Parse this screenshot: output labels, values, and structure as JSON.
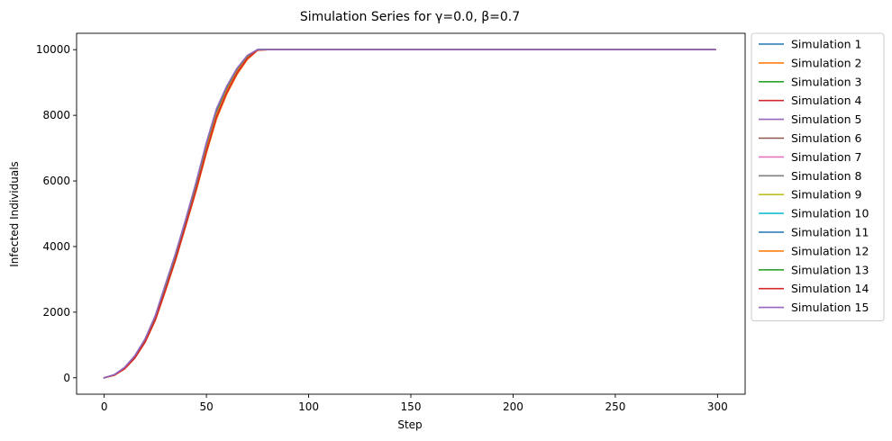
{
  "chart_data": {
    "type": "line",
    "title": "Simulation Series for γ=0.0, β=0.7",
    "xlabel": "Step",
    "ylabel": "Infected Individuals",
    "xlim": [
      -13.5,
      313.5
    ],
    "ylim": [
      -500,
      10500
    ],
    "xticks": [
      0,
      50,
      100,
      150,
      200,
      250,
      300
    ],
    "yticks": [
      0,
      2000,
      4000,
      6000,
      8000,
      10000
    ],
    "grid": false,
    "legend": "outside-upper-right",
    "x": [
      0,
      5,
      10,
      15,
      20,
      25,
      30,
      35,
      40,
      45,
      50,
      55,
      60,
      65,
      70,
      75,
      80,
      100,
      150,
      200,
      250,
      299
    ],
    "series": [
      {
        "name": "Simulation 1",
        "color": "#1f77b4",
        "values": [
          0,
          90,
          300,
          650,
          1150,
          1850,
          2800,
          3750,
          4800,
          5900,
          7100,
          8150,
          8850,
          9400,
          9800,
          10000,
          10000,
          10000,
          10000,
          10000,
          10000,
          10000
        ]
      },
      {
        "name": "Simulation 2",
        "color": "#ff7f0e",
        "values": [
          0,
          80,
          270,
          600,
          1080,
          1750,
          2650,
          3600,
          4650,
          5700,
          6850,
          7900,
          8650,
          9250,
          9700,
          9980,
          10000,
          10000,
          10000,
          10000,
          10000,
          10000
        ]
      },
      {
        "name": "Simulation 3",
        "color": "#2ca02c",
        "values": [
          0,
          88,
          295,
          640,
          1140,
          1840,
          2780,
          3730,
          4780,
          5880,
          7070,
          8120,
          8830,
          9390,
          9790,
          10000,
          10000,
          10000,
          10000,
          10000,
          10000,
          10000
        ]
      },
      {
        "name": "Simulation 4",
        "color": "#d62728",
        "values": [
          0,
          82,
          280,
          615,
          1100,
          1780,
          2700,
          3650,
          4700,
          5780,
          6950,
          8000,
          8730,
          9320,
          9750,
          9995,
          10000,
          10000,
          10000,
          10000,
          10000,
          10000
        ]
      },
      {
        "name": "Simulation 5",
        "color": "#9467bd",
        "values": [
          0,
          95,
          315,
          670,
          1180,
          1890,
          2850,
          3800,
          4850,
          5960,
          7160,
          8200,
          8890,
          9430,
          9820,
          10000,
          10000,
          10000,
          10000,
          10000,
          10000,
          10000
        ]
      },
      {
        "name": "Simulation 6",
        "color": "#8c564b",
        "values": [
          0,
          90,
          300,
          650,
          1150,
          1850,
          2800,
          3750,
          4800,
          5900,
          7100,
          8150,
          8850,
          9400,
          9800,
          10000,
          10000,
          10000,
          10000,
          10000,
          10000,
          10000
        ]
      },
      {
        "name": "Simulation 7",
        "color": "#e377c2",
        "values": [
          0,
          92,
          305,
          655,
          1160,
          1860,
          2810,
          3760,
          4810,
          5910,
          7110,
          8160,
          8860,
          9410,
          9805,
          10000,
          10000,
          10000,
          10000,
          10000,
          10000,
          10000
        ]
      },
      {
        "name": "Simulation 8",
        "color": "#7f7f7f",
        "values": [
          0,
          89,
          298,
          648,
          1148,
          1848,
          2798,
          3748,
          4798,
          5898,
          7098,
          8148,
          8848,
          9398,
          9798,
          10000,
          10000,
          10000,
          10000,
          10000,
          10000,
          10000
        ]
      },
      {
        "name": "Simulation 9",
        "color": "#bcbd22",
        "values": [
          0,
          84,
          285,
          625,
          1115,
          1800,
          2730,
          3680,
          4730,
          5820,
          7000,
          8060,
          8780,
          9350,
          9770,
          9998,
          10000,
          10000,
          10000,
          10000,
          10000,
          10000
        ]
      },
      {
        "name": "Simulation 10",
        "color": "#17becf",
        "values": [
          0,
          91,
          302,
          652,
          1152,
          1852,
          2802,
          3752,
          4802,
          5902,
          7102,
          8152,
          8852,
          9402,
          9802,
          10000,
          10000,
          10000,
          10000,
          10000,
          10000,
          10000
        ]
      },
      {
        "name": "Simulation 11",
        "color": "#1f77b4",
        "values": [
          0,
          87,
          292,
          636,
          1134,
          1832,
          2770,
          3720,
          4770,
          5865,
          7055,
          8110,
          8820,
          9380,
          9785,
          10000,
          10000,
          10000,
          10000,
          10000,
          10000,
          10000
        ]
      },
      {
        "name": "Simulation 12",
        "color": "#ff7f0e",
        "values": [
          0,
          83,
          282,
          620,
          1108,
          1790,
          2715,
          3665,
          4715,
          5800,
          6975,
          8030,
          8760,
          9335,
          9760,
          9996,
          10000,
          10000,
          10000,
          10000,
          10000,
          10000
        ]
      },
      {
        "name": "Simulation 13",
        "color": "#2ca02c",
        "values": [
          0,
          93,
          308,
          660,
          1165,
          1870,
          2825,
          3775,
          4825,
          5930,
          7130,
          8175,
          8870,
          9415,
          9810,
          10000,
          10000,
          10000,
          10000,
          10000,
          10000,
          10000
        ]
      },
      {
        "name": "Simulation 14",
        "color": "#d62728",
        "values": [
          0,
          80,
          275,
          605,
          1090,
          1765,
          2680,
          3625,
          4675,
          5740,
          6900,
          7960,
          8700,
          9290,
          9730,
          9990,
          10000,
          10000,
          10000,
          10000,
          10000,
          10000
        ]
      },
      {
        "name": "Simulation 15",
        "color": "#9467bd",
        "values": [
          0,
          96,
          318,
          675,
          1185,
          1895,
          2860,
          3810,
          4860,
          5970,
          7170,
          8210,
          8895,
          9435,
          9825,
          10000,
          10000,
          10000,
          10000,
          10000,
          10000,
          10000
        ]
      }
    ]
  }
}
